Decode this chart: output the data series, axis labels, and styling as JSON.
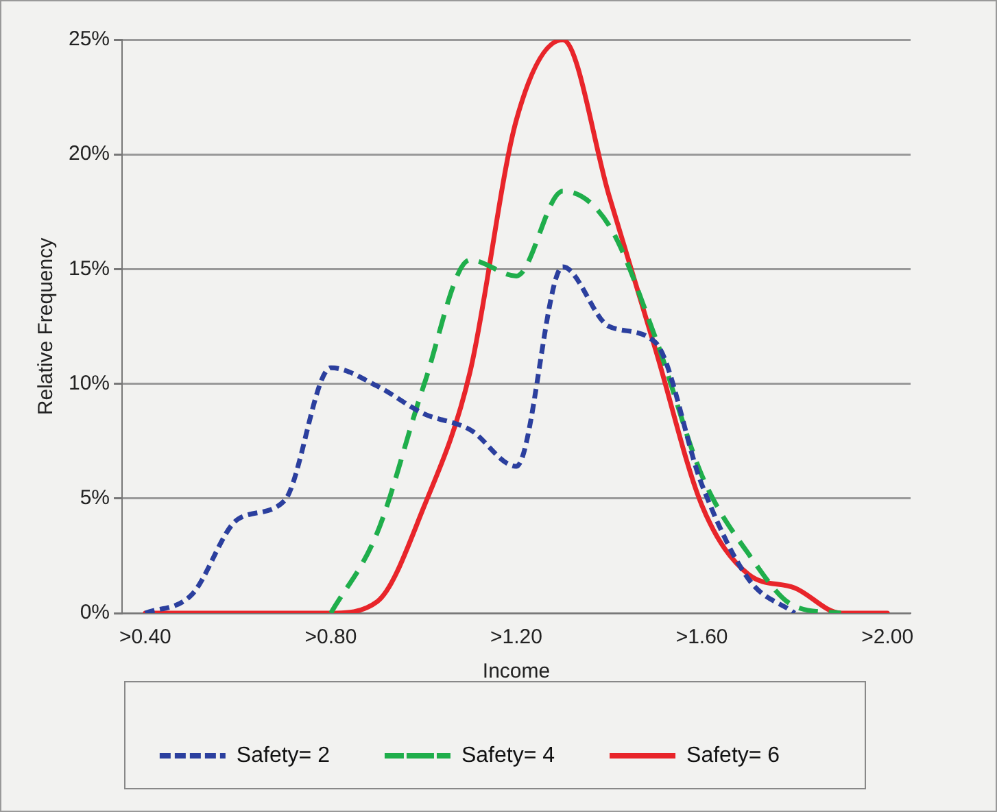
{
  "chart_data": {
    "type": "line",
    "xlabel": "Income",
    "ylabel": "Relative Frequency",
    "categories": [
      ">0.40",
      null,
      null,
      null,
      ">0.80",
      null,
      null,
      null,
      ">1.20",
      null,
      null,
      null,
      ">1.60",
      null,
      null,
      null,
      ">2.00"
    ],
    "ylim": [
      0,
      25
    ],
    "yticks": [
      {
        "value": 0,
        "label": "0%"
      },
      {
        "value": 5,
        "label": "5%"
      },
      {
        "value": 10,
        "label": "10%"
      },
      {
        "value": 15,
        "label": "15%"
      },
      {
        "value": 20,
        "label": "20%"
      },
      {
        "value": 25,
        "label": "25%"
      }
    ],
    "grid": "y",
    "legend": "bottom",
    "marker": "none",
    "series": [
      {
        "name": "Safety= 2",
        "color": "#2b3f9e",
        "line_style": "dotted",
        "values": [
          0,
          0.8,
          4.1,
          4.9,
          10.7,
          9.9,
          8.7,
          8.0,
          6.4,
          15.1,
          12.5,
          11.8,
          5.6,
          1.5,
          0,
          null,
          null
        ]
      },
      {
        "name": "Safety= 4",
        "color": "#1fae4b",
        "line_style": "dashed",
        "values": [
          null,
          null,
          null,
          null,
          0,
          3.5,
          9.9,
          15.4,
          14.7,
          18.4,
          16.9,
          12.0,
          6.0,
          2.6,
          0.3,
          0,
          null
        ]
      },
      {
        "name": "Safety= 6",
        "color": "#e8252a",
        "line_style": "solid",
        "values": [
          0,
          0,
          0,
          0,
          0,
          0.5,
          4.6,
          10.5,
          21.5,
          25,
          18.2,
          11.5,
          4.7,
          1.7,
          1.1,
          0,
          0
        ]
      }
    ]
  }
}
